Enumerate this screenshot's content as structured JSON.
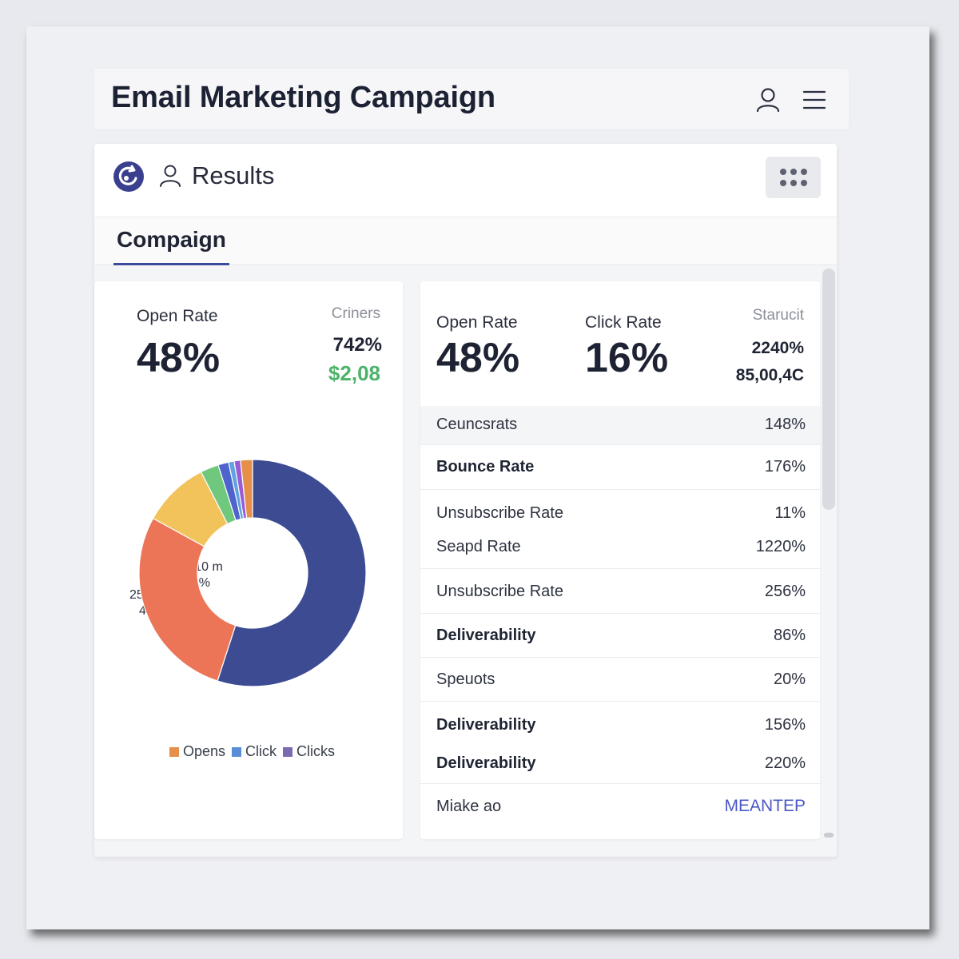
{
  "header": {
    "title": "Email Marketing Campaign"
  },
  "toolbar": {
    "results_label": "Results",
    "tab_label": "Compaign"
  },
  "left_panel": {
    "open_rate_label": "Open Rate",
    "open_rate_value": "48%",
    "side_label": "Criners",
    "side_value_1": "742%",
    "side_value_2": "$2,08",
    "legend": [
      {
        "label": "Opens",
        "color": "#e58f4b"
      },
      {
        "label": "Click",
        "color": "#5a8fd8"
      },
      {
        "label": "Clicks",
        "color": "#7a6bb0"
      }
    ]
  },
  "chart_data": {
    "type": "pie",
    "annotations": [
      {
        "line1": "25,10 m",
        "line2": "20%"
      },
      {
        "line1": "25,10 m",
        "line2": "48%"
      }
    ],
    "slices": [
      {
        "value": 55.0,
        "color": "#3d4b93"
      },
      {
        "value": 28.0,
        "color": "#ec7557"
      },
      {
        "value": 9.5,
        "color": "#f2c35a"
      },
      {
        "value": 2.6,
        "color": "#70c77e"
      },
      {
        "value": 1.5,
        "color": "#4f63cc"
      },
      {
        "value": 0.8,
        "color": "#5fa3e0"
      },
      {
        "value": 0.9,
        "color": "#9a5bd6"
      },
      {
        "value": 1.7,
        "color": "#e58f4b"
      }
    ]
  },
  "right_panel": {
    "open_rate_label": "Open Rate",
    "open_rate_value": "48%",
    "click_rate_label": "Click Rate",
    "click_rate_value": "16%",
    "side_label": "Starucit",
    "side_value_1": "2240%",
    "side_value_2": "85,00,4C",
    "rows": [
      {
        "label": "Ceuncsrats",
        "value": "148%",
        "bold": false
      },
      {
        "label": "Bounce Rate",
        "value": "176%",
        "bold": true
      },
      {
        "label": "Unsubscribe Rate",
        "value": "11%",
        "bold": false
      },
      {
        "label": "Seapd Rate",
        "value": "1220%",
        "bold": false
      },
      {
        "label": "Unsubscribe Rate",
        "value": "256%",
        "bold": false
      },
      {
        "label": "Deliverability",
        "value": "86%",
        "bold": true
      },
      {
        "label": "Speuots",
        "value": "20%",
        "bold": false
      },
      {
        "label": "Deliverability",
        "value": "156%",
        "bold": true
      },
      {
        "label": "Deliverability",
        "value": "220%",
        "bold": true
      },
      {
        "label": "Miake ao",
        "value": "MEANTEP",
        "bold": false
      }
    ]
  }
}
